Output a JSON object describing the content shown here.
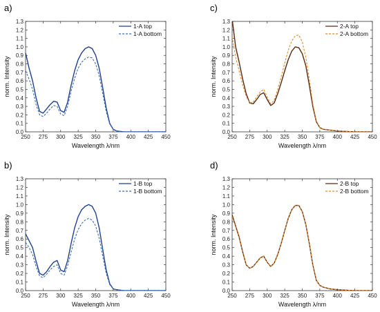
{
  "chart_data": [
    {
      "type": "line",
      "panel_label": "a)",
      "xlabel": "Wavelength λ/nm",
      "ylabel": "norm. Intensity",
      "xlim": [
        250,
        450
      ],
      "ylim": [
        0,
        1.3
      ],
      "xticks": [
        250,
        275,
        300,
        325,
        350,
        375,
        400,
        425,
        450
      ],
      "yticks": [
        0.0,
        0.1,
        0.2,
        0.3,
        0.4,
        0.5,
        0.6,
        0.7,
        0.8,
        0.9,
        1.0,
        1.1,
        1.2,
        1.3
      ],
      "grid": false,
      "legend": "top-right",
      "series": [
        {
          "name": "1-A top",
          "color": "#1f3f8f",
          "style": "solid",
          "x": [
            250,
            255,
            260,
            265,
            270,
            275,
            280,
            285,
            290,
            295,
            300,
            305,
            310,
            315,
            320,
            325,
            330,
            335,
            340,
            345,
            350,
            355,
            360,
            365,
            370,
            375,
            380,
            390,
            400,
            425,
            450
          ],
          "y": [
            0.93,
            0.75,
            0.6,
            0.4,
            0.24,
            0.22,
            0.27,
            0.32,
            0.36,
            0.35,
            0.25,
            0.23,
            0.35,
            0.55,
            0.72,
            0.85,
            0.93,
            0.98,
            1.0,
            0.98,
            0.9,
            0.75,
            0.52,
            0.28,
            0.1,
            0.03,
            0.01,
            0.0,
            0.0,
            0.0,
            0.0
          ]
        },
        {
          "name": "1-A bottom",
          "color": "#3a6fb8",
          "style": "dashed",
          "x": [
            250,
            255,
            260,
            265,
            270,
            275,
            280,
            285,
            290,
            295,
            300,
            305,
            310,
            315,
            320,
            325,
            330,
            335,
            340,
            345,
            350,
            355,
            360,
            365,
            370,
            375,
            380,
            390,
            400,
            425,
            450
          ],
          "y": [
            0.72,
            0.62,
            0.5,
            0.32,
            0.2,
            0.18,
            0.22,
            0.27,
            0.31,
            0.3,
            0.21,
            0.19,
            0.3,
            0.48,
            0.63,
            0.75,
            0.82,
            0.86,
            0.88,
            0.87,
            0.8,
            0.66,
            0.45,
            0.24,
            0.09,
            0.03,
            0.01,
            0.0,
            0.0,
            0.0,
            0.0
          ]
        }
      ]
    },
    {
      "type": "line",
      "panel_label": "c)",
      "xlabel": "Wavelength λ/nm",
      "ylabel": "norm. Intensity",
      "xlim": [
        250,
        450
      ],
      "ylim": [
        0,
        1.3
      ],
      "xticks": [
        250,
        275,
        300,
        325,
        350,
        375,
        400,
        425,
        450
      ],
      "yticks": [
        0.0,
        0.1,
        0.2,
        0.3,
        0.4,
        0.5,
        0.6,
        0.7,
        0.8,
        0.9,
        1.0,
        1.1,
        1.2,
        1.3
      ],
      "grid": false,
      "legend": "top-right",
      "series": [
        {
          "name": "2-A top",
          "color": "#5a2a10",
          "style": "solid",
          "x": [
            250,
            255,
            260,
            265,
            270,
            275,
            280,
            285,
            290,
            295,
            300,
            305,
            310,
            315,
            320,
            325,
            330,
            335,
            340,
            345,
            350,
            355,
            360,
            365,
            370,
            375,
            380,
            390,
            400,
            425,
            450
          ],
          "y": [
            1.33,
            1.0,
            0.82,
            0.62,
            0.45,
            0.34,
            0.33,
            0.38,
            0.44,
            0.46,
            0.38,
            0.31,
            0.34,
            0.45,
            0.58,
            0.72,
            0.85,
            0.95,
            1.0,
            0.99,
            0.92,
            0.78,
            0.55,
            0.3,
            0.12,
            0.05,
            0.03,
            0.02,
            0.01,
            0.0,
            0.0
          ]
        },
        {
          "name": "2-A bottom",
          "color": "#e08a2a",
          "style": "dashed",
          "x": [
            250,
            255,
            260,
            265,
            270,
            275,
            280,
            285,
            290,
            295,
            300,
            305,
            310,
            315,
            320,
            325,
            330,
            335,
            340,
            345,
            350,
            355,
            360,
            365,
            370,
            375,
            380,
            390,
            400,
            425,
            450
          ],
          "y": [
            1.12,
            0.88,
            0.72,
            0.55,
            0.42,
            0.34,
            0.35,
            0.41,
            0.47,
            0.5,
            0.41,
            0.33,
            0.37,
            0.5,
            0.65,
            0.81,
            0.96,
            1.07,
            1.13,
            1.14,
            1.06,
            0.88,
            0.62,
            0.33,
            0.13,
            0.05,
            0.03,
            0.02,
            0.01,
            0.0,
            0.0
          ]
        }
      ]
    },
    {
      "type": "line",
      "panel_label": "b)",
      "xlabel": "Wavelength λ/nm",
      "ylabel": "norm. Intensity",
      "xlim": [
        250,
        450
      ],
      "ylim": [
        0,
        1.3
      ],
      "xticks": [
        250,
        275,
        300,
        325,
        350,
        375,
        400,
        425,
        450
      ],
      "yticks": [
        0.0,
        0.1,
        0.2,
        0.3,
        0.4,
        0.5,
        0.6,
        0.7,
        0.8,
        0.9,
        1.0,
        1.1,
        1.2,
        1.3
      ],
      "grid": false,
      "legend": "top-right",
      "series": [
        {
          "name": "1-B top",
          "color": "#1f3f8f",
          "style": "solid",
          "x": [
            250,
            255,
            260,
            265,
            270,
            275,
            280,
            285,
            290,
            295,
            300,
            305,
            310,
            315,
            320,
            325,
            330,
            335,
            340,
            345,
            350,
            355,
            360,
            365,
            370,
            375,
            380,
            390,
            400,
            425,
            450
          ],
          "y": [
            0.66,
            0.58,
            0.5,
            0.34,
            0.2,
            0.18,
            0.22,
            0.28,
            0.33,
            0.35,
            0.24,
            0.22,
            0.35,
            0.55,
            0.73,
            0.86,
            0.94,
            0.98,
            1.0,
            0.98,
            0.9,
            0.73,
            0.48,
            0.24,
            0.08,
            0.02,
            0.01,
            0.0,
            0.0,
            0.0,
            0.0
          ]
        },
        {
          "name": "1-B bottom",
          "color": "#3a6fb8",
          "style": "dashed",
          "x": [
            250,
            255,
            260,
            265,
            270,
            275,
            280,
            285,
            290,
            295,
            300,
            305,
            310,
            315,
            320,
            325,
            330,
            335,
            340,
            345,
            350,
            355,
            360,
            365,
            370,
            375,
            380,
            390,
            400,
            425,
            450
          ],
          "y": [
            0.56,
            0.5,
            0.42,
            0.28,
            0.17,
            0.15,
            0.19,
            0.24,
            0.28,
            0.3,
            0.2,
            0.18,
            0.29,
            0.45,
            0.6,
            0.71,
            0.78,
            0.82,
            0.84,
            0.82,
            0.75,
            0.61,
            0.4,
            0.2,
            0.07,
            0.02,
            0.01,
            0.0,
            0.0,
            0.0,
            0.0
          ]
        }
      ]
    },
    {
      "type": "line",
      "panel_label": "d)",
      "xlabel": "Wavelength λ/nm",
      "ylabel": "norm. Intensity",
      "xlim": [
        250,
        450
      ],
      "ylim": [
        0,
        1.3
      ],
      "xticks": [
        250,
        275,
        300,
        325,
        350,
        375,
        400,
        425,
        450
      ],
      "yticks": [
        0.0,
        0.1,
        0.2,
        0.3,
        0.4,
        0.5,
        0.6,
        0.7,
        0.8,
        0.9,
        1.0,
        1.1,
        1.2,
        1.3
      ],
      "grid": false,
      "legend": "top-right",
      "series": [
        {
          "name": "2-B top",
          "color": "#5a2a10",
          "style": "solid",
          "x": [
            250,
            255,
            260,
            265,
            270,
            275,
            280,
            285,
            290,
            295,
            300,
            305,
            310,
            315,
            320,
            325,
            330,
            335,
            340,
            345,
            350,
            355,
            360,
            365,
            370,
            375,
            380,
            390,
            400,
            425,
            450
          ],
          "y": [
            0.88,
            0.75,
            0.62,
            0.45,
            0.3,
            0.26,
            0.28,
            0.33,
            0.38,
            0.4,
            0.33,
            0.28,
            0.32,
            0.42,
            0.55,
            0.7,
            0.84,
            0.94,
            0.99,
            0.99,
            0.92,
            0.77,
            0.55,
            0.3,
            0.12,
            0.06,
            0.04,
            0.02,
            0.01,
            0.0,
            0.0
          ]
        },
        {
          "name": "2-B bottom",
          "color": "#e08a2a",
          "style": "dashed",
          "x": [
            250,
            255,
            260,
            265,
            270,
            275,
            280,
            285,
            290,
            295,
            300,
            305,
            310,
            315,
            320,
            325,
            330,
            335,
            340,
            345,
            350,
            355,
            360,
            365,
            370,
            375,
            380,
            390,
            400,
            425,
            450
          ],
          "y": [
            0.86,
            0.74,
            0.61,
            0.44,
            0.3,
            0.26,
            0.28,
            0.33,
            0.38,
            0.4,
            0.33,
            0.28,
            0.32,
            0.42,
            0.55,
            0.7,
            0.84,
            0.94,
            0.99,
            0.99,
            0.92,
            0.77,
            0.55,
            0.3,
            0.12,
            0.06,
            0.04,
            0.02,
            0.01,
            0.0,
            0.0
          ]
        }
      ]
    }
  ]
}
